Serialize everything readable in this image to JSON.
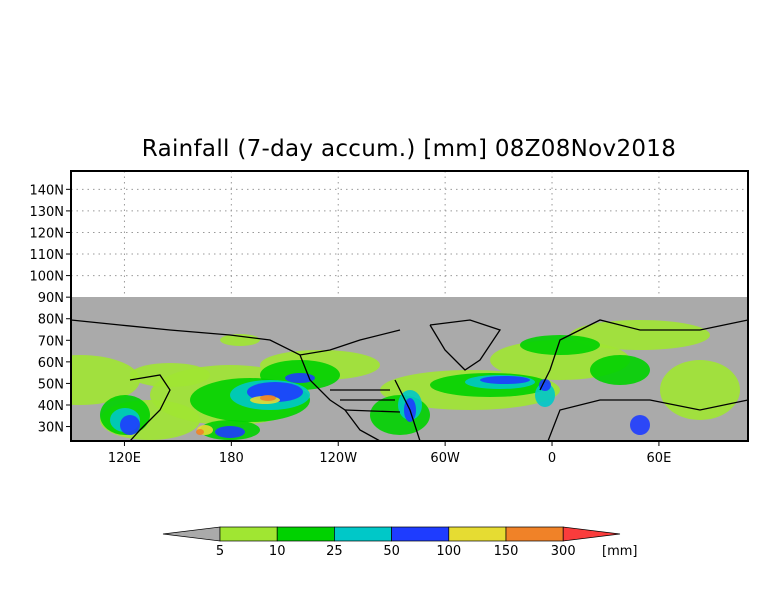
{
  "title": "Rainfall (7-day accum.) [mm] 08Z08Nov2018",
  "map": {
    "lat_labels": [
      {
        "lat": 140,
        "label": "140N"
      },
      {
        "lat": 130,
        "label": "130N"
      },
      {
        "lat": 120,
        "label": "120N"
      },
      {
        "lat": 110,
        "label": "110N"
      },
      {
        "lat": 100,
        "label": "100N"
      },
      {
        "lat": 90,
        "label": "90N"
      },
      {
        "lat": 80,
        "label": "80N"
      },
      {
        "lat": 70,
        "label": "70N"
      },
      {
        "lat": 60,
        "label": "60N"
      },
      {
        "lat": 50,
        "label": "50N"
      },
      {
        "lat": 40,
        "label": "40N"
      },
      {
        "lat": 30,
        "label": "30N"
      }
    ],
    "lon_labels": [
      {
        "lon": 120,
        "label": "120E"
      },
      {
        "lon": 180,
        "label": "180"
      },
      {
        "lon": 240,
        "label": "120W"
      },
      {
        "lon": 300,
        "label": "60W"
      },
      {
        "lon": 360,
        "label": "0"
      },
      {
        "lon": 420,
        "label": "60E"
      }
    ],
    "lon_range": [
      90,
      470
    ],
    "lat_range": [
      23.3,
      148.5
    ],
    "no_data_color": "#aaaaaa"
  },
  "colorbar": {
    "unit": "[mm]",
    "levels": [
      "5",
      "10",
      "25",
      "50",
      "100",
      "150",
      "300"
    ],
    "colors": [
      "#aaaaaa",
      "#a0e632",
      "#00d200",
      "#00c8c8",
      "#1e3cff",
      "#e6dc32",
      "#f08228",
      "#fa3c3c"
    ]
  }
}
